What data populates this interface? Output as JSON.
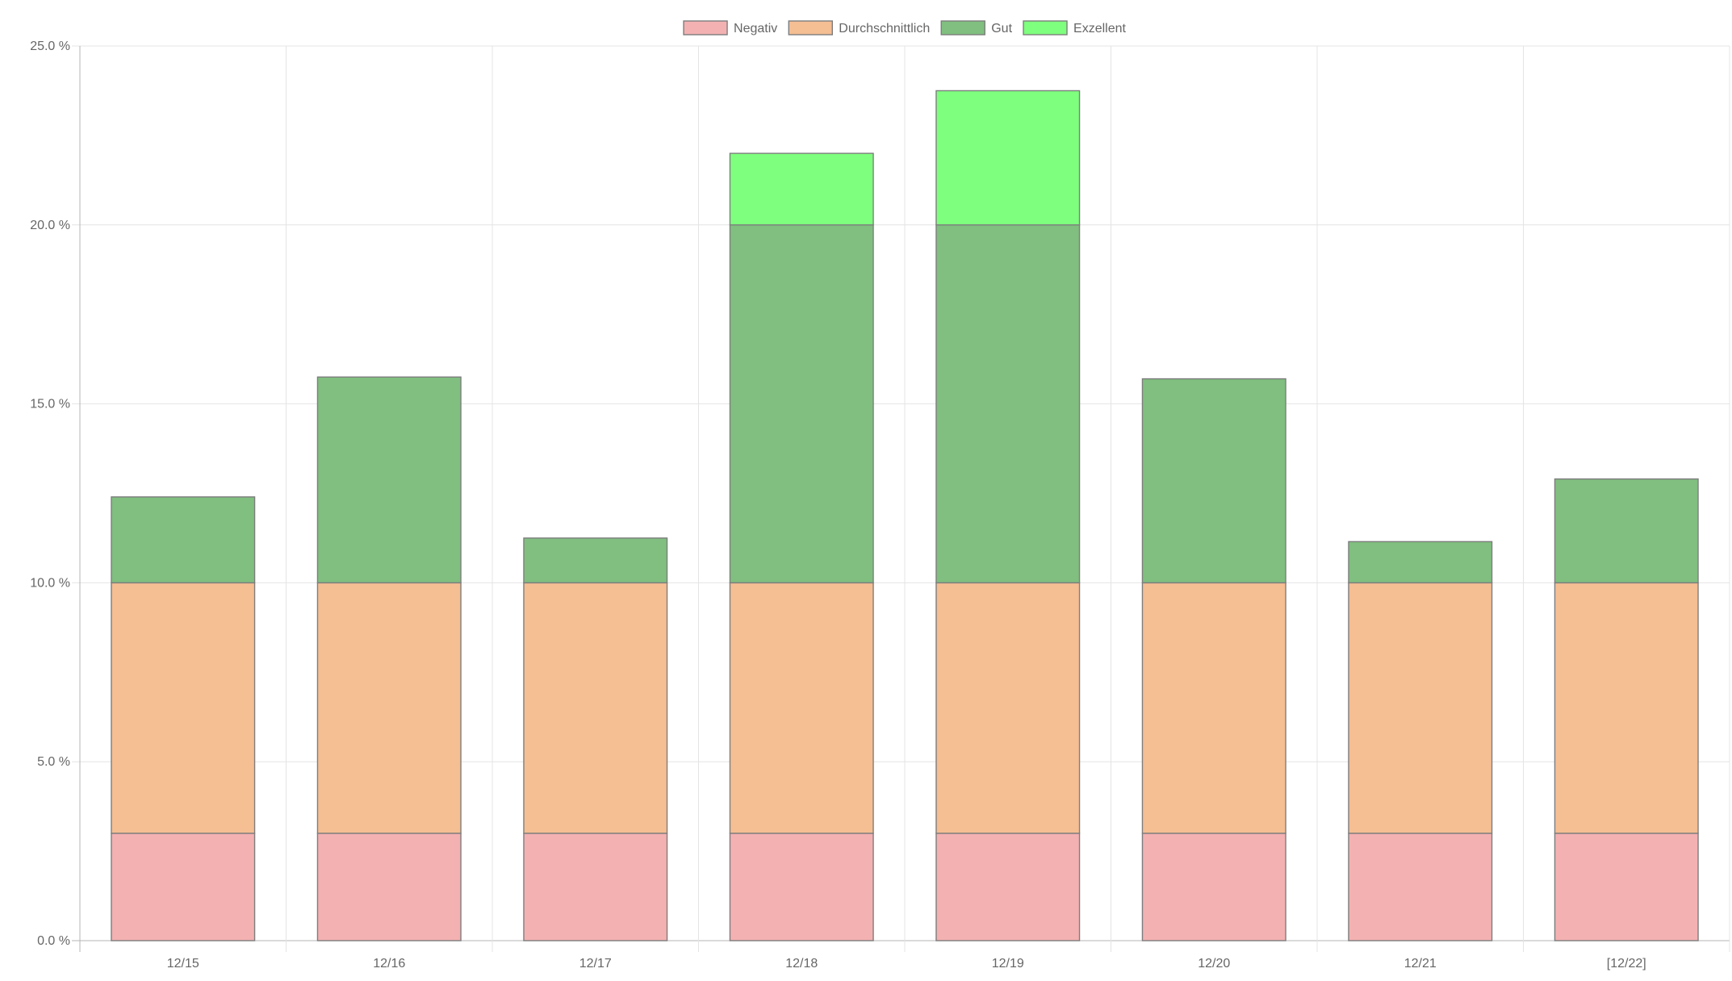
{
  "chart_data": {
    "type": "bar",
    "stacked": true,
    "categories": [
      "12/15",
      "12/16",
      "12/17",
      "12/18",
      "12/19",
      "12/20",
      "12/21",
      "[12/22]"
    ],
    "series": [
      {
        "name": "Negativ",
        "values": [
          3,
          3,
          3,
          3,
          3,
          3,
          3,
          3
        ],
        "color": "#f4b1b2"
      },
      {
        "name": "Durchschnittlich",
        "values": [
          7,
          7,
          7,
          7,
          7,
          7,
          7,
          7
        ],
        "color": "#f5be93"
      },
      {
        "name": "Gut",
        "values": [
          2.4,
          5.75,
          1.25,
          10,
          10,
          5.7,
          1.15,
          2.9
        ],
        "color": "#80bf7f"
      },
      {
        "name": "Exzellent",
        "values": [
          0,
          0,
          0,
          2,
          3.75,
          0,
          0,
          0
        ],
        "color": "#7fff7e"
      }
    ],
    "yticks": [
      "0.0 %",
      "5.0 %",
      "10.0 %",
      "15.0 %",
      "20.0 %",
      "25.0 %"
    ],
    "ylim": [
      0,
      25
    ],
    "grid": true,
    "legend_position": "top-center",
    "bar_border_color": "#7d7d7d"
  }
}
